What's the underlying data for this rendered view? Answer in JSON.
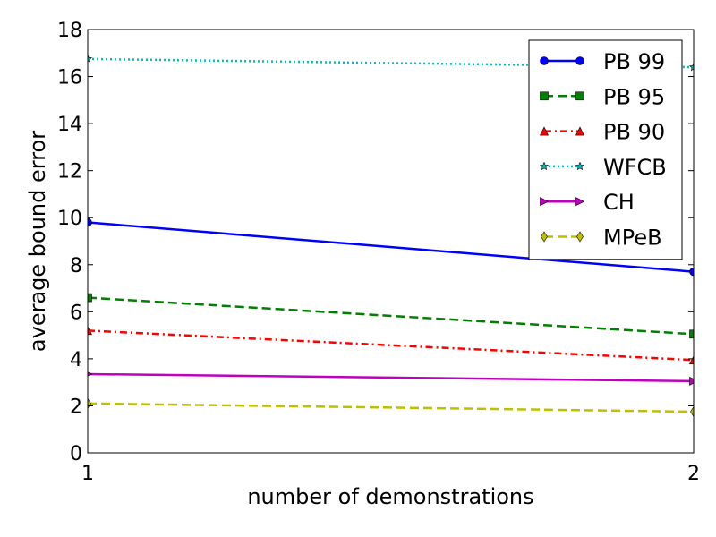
{
  "chart_data": {
    "type": "line",
    "x": [
      1,
      2
    ],
    "xlabel": "number of demonstrations",
    "ylabel": "average bound error",
    "xlim": [
      1,
      2
    ],
    "ylim": [
      0,
      18
    ],
    "xticks": [
      1,
      2
    ],
    "yticks": [
      0,
      2,
      4,
      6,
      8,
      10,
      12,
      14,
      16,
      18
    ],
    "grid": false,
    "legend_position": "top-right",
    "series": [
      {
        "name": "PB 99",
        "values": [
          9.8,
          7.7
        ],
        "color": "#0000ff",
        "line_style": "solid",
        "marker": "circle"
      },
      {
        "name": "PB 95",
        "values": [
          6.6,
          5.05
        ],
        "color": "#008000",
        "line_style": "dashed",
        "marker": "square"
      },
      {
        "name": "PB 90",
        "values": [
          5.2,
          3.95
        ],
        "color": "#ff0000",
        "line_style": "dashdot",
        "marker": "triangle"
      },
      {
        "name": "WFCB",
        "values": [
          16.75,
          16.4
        ],
        "color": "#00bfbf",
        "line_style": "dotted",
        "marker": "star"
      },
      {
        "name": "CH",
        "values": [
          3.35,
          3.05
        ],
        "color": "#bf00bf",
        "line_style": "solid",
        "marker": "triangle-right"
      },
      {
        "name": "MPeB",
        "values": [
          2.1,
          1.75
        ],
        "color": "#bfbf00",
        "line_style": "dashed",
        "marker": "diamond"
      }
    ]
  }
}
